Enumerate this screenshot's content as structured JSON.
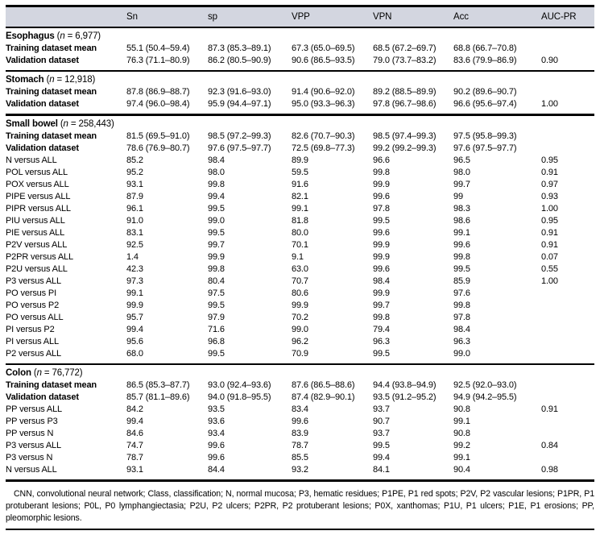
{
  "colors": {
    "header_band": "#d3d6e0",
    "rule": "#000000"
  },
  "table": {
    "n_symbol": "n",
    "columns": [
      "Sn",
      "sp",
      "VPP",
      "VPN",
      "Acc",
      "AUC-PR"
    ],
    "sections": [
      {
        "name": "Esophagus",
        "n": "6,977",
        "rule_above": "none",
        "rows": [
          {
            "label": "Training dataset mean",
            "bold": true,
            "values": [
              "55.1 (50.4–59.4)",
              "87.3 (85.3–89.1)",
              "67.3 (65.0–69.5)",
              "68.5 (67.2–69.7)",
              "68.8 (66.7–70.8)",
              ""
            ]
          },
          {
            "label": "Validation dataset",
            "bold": true,
            "values": [
              "76.3 (71.1–80.9)",
              "86.2 (80.5–90.9)",
              "90.6 (86.5–93.5)",
              "79.0 (73.7–83.2)",
              "83.6 (79.9–86.9)",
              "0.90"
            ]
          }
        ]
      },
      {
        "name": "Stomach",
        "n": "12,918",
        "rule_above": "thin",
        "rows": [
          {
            "label": "Training dataset mean",
            "bold": true,
            "values": [
              "87.8 (86.9–88.7)",
              "92.3 (91.6–93.0)",
              "91.4 (90.6–92.0)",
              "89.2 (88.5–89.9)",
              "90.2 (89.6–90.7)",
              ""
            ]
          },
          {
            "label": "Validation dataset",
            "bold": true,
            "values": [
              "97.4 (96.0–98.4)",
              "95.9 (94.4–97.1)",
              "95.0 (93.3–96.3)",
              "97.8 (96.7–98.6)",
              "96.6 (95.6–97.4)",
              "1.00"
            ]
          }
        ]
      },
      {
        "name": "Small bowel",
        "n": "258,443",
        "rule_above": "thick",
        "rows": [
          {
            "label": "Training dataset mean",
            "bold": true,
            "values": [
              "81.5 (69.5–91.0)",
              "98.5 (97.2–99.3)",
              "82.6 (70.7–90.3)",
              "98.5 (97.4–99.3)",
              "97.5 (95.8–99.3)",
              ""
            ]
          },
          {
            "label": "Validation dataset",
            "bold": true,
            "values": [
              "78.6 (76.9–80.7)",
              "97.6 (97.5–97.7)",
              "72.5 (69.8–77.3)",
              "99.2 (99.2–99.3)",
              "97.6 (97.5–97.7)",
              ""
            ]
          },
          {
            "label": "N versus ALL",
            "bold": false,
            "values": [
              "85.2",
              "98.4",
              "89.9",
              "96.6",
              "96.5",
              "0.95"
            ]
          },
          {
            "label": "POL versus ALL",
            "bold": false,
            "values": [
              "95.2",
              "98.0",
              "59.5",
              "99.8",
              "98.0",
              "0.91"
            ]
          },
          {
            "label": "POX versus ALL",
            "bold": false,
            "values": [
              "93.1",
              "99.8",
              "91.6",
              "99.9",
              "99.7",
              "0.97"
            ]
          },
          {
            "label": "PIPE versus ALL",
            "bold": false,
            "values": [
              "87.9",
              "99.4",
              "82.1",
              "99.6",
              "99",
              "0.93"
            ]
          },
          {
            "label": "PIPR versus ALL",
            "bold": false,
            "values": [
              "96.1",
              "99.5",
              "99.1",
              "97.8",
              "98.3",
              "1.00"
            ]
          },
          {
            "label": "PIU versus ALL",
            "bold": false,
            "values": [
              "91.0",
              "99.0",
              "81.8",
              "99.5",
              "98.6",
              "0.95"
            ]
          },
          {
            "label": "PIE versus ALL",
            "bold": false,
            "values": [
              "83.1",
              "99.5",
              "80.0",
              "99.6",
              "99.1",
              "0.91"
            ]
          },
          {
            "label": "P2V versus ALL",
            "bold": false,
            "values": [
              "92.5",
              "99.7",
              "70.1",
              "99.9",
              "99.6",
              "0.91"
            ]
          },
          {
            "label": "P2PR versus ALL",
            "bold": false,
            "values": [
              "1.4",
              "99.9",
              "9.1",
              "99.9",
              "99.8",
              "0.07"
            ]
          },
          {
            "label": "P2U versus ALL",
            "bold": false,
            "values": [
              "42.3",
              "99.8",
              "63.0",
              "99.6",
              "99.5",
              "0.55"
            ]
          },
          {
            "label": "P3 versus ALL",
            "bold": false,
            "values": [
              "97.3",
              "80.4",
              "70.7",
              "98.4",
              "85.9",
              "1.00"
            ]
          },
          {
            "label": "PO versus PI",
            "bold": false,
            "values": [
              "99.1",
              "97.5",
              "80.6",
              "99.9",
              "97.6",
              ""
            ]
          },
          {
            "label": "PO versus P2",
            "bold": false,
            "values": [
              "99.9",
              "99.5",
              "99.9",
              "99.7",
              "99.8",
              ""
            ]
          },
          {
            "label": "PO versus ALL",
            "bold": false,
            "values": [
              "95.7",
              "97.9",
              "70.2",
              "99.8",
              "97.8",
              ""
            ]
          },
          {
            "label": "PI versus P2",
            "bold": false,
            "values": [
              "99.4",
              "71.6",
              "99.0",
              "79.4",
              "98.4",
              ""
            ]
          },
          {
            "label": "PI versus ALL",
            "bold": false,
            "values": [
              "95.6",
              "96.8",
              "96.2",
              "96.3",
              "96.3",
              ""
            ]
          },
          {
            "label": "P2 versus ALL",
            "bold": false,
            "values": [
              "68.0",
              "99.5",
              "70.9",
              "99.5",
              "99.0",
              ""
            ]
          }
        ]
      },
      {
        "name": "Colon",
        "n": "76,772",
        "rule_above": "thin",
        "rows": [
          {
            "label": "Training dataset mean",
            "bold": true,
            "values": [
              "86.5 (85.3–87.7)",
              "93.0 (92.4–93.6)",
              "87.6 (86.5–88.6)",
              "94.4 (93.8–94.9)",
              "92.5 (92.0–93.0)",
              ""
            ]
          },
          {
            "label": "Validation dataset",
            "bold": true,
            "values": [
              "85.7 (81.1–89.6)",
              "94.0 (91.8–95.5)",
              "87.4 (82.9–90.1)",
              "93.5 (91.2–95.2)",
              "94.9 (94.2–95.5)",
              ""
            ]
          },
          {
            "label": "PP versus ALL",
            "bold": false,
            "values": [
              "84.2",
              "93.5",
              "83.4",
              "93.7",
              "90.8",
              "0.91"
            ]
          },
          {
            "label": "PP versus P3",
            "bold": false,
            "values": [
              "99.4",
              "93.6",
              "99.6",
              "90.7",
              "99.1",
              ""
            ]
          },
          {
            "label": "PP versus N",
            "bold": false,
            "values": [
              "84.6",
              "93.4",
              "83.9",
              "93.7",
              "90.8",
              ""
            ]
          },
          {
            "label": "P3 versus ALL",
            "bold": false,
            "values": [
              "74.7",
              "99.6",
              "78.7",
              "99.5",
              "99.2",
              "0.84"
            ]
          },
          {
            "label": "P3 versus N",
            "bold": false,
            "values": [
              "78.7",
              "99.6",
              "85.5",
              "99.4",
              "99.1",
              ""
            ]
          },
          {
            "label": "N versus ALL",
            "bold": false,
            "values": [
              "93.1",
              "84.4",
              "93.2",
              "84.1",
              "90.4",
              "0.98"
            ]
          }
        ]
      }
    ]
  },
  "footnote": "CNN, convolutional neural network; Class, classification; N, normal mucosa; P3, hematic residues; P1PE, P1 red spots; P2V, P2 vascular lesions; P1PR, P1 protuberant lesions; P0L, P0 lymphangiectasia; P2U, P2 ulcers; P2PR, P2 protuberant lesions; P0X, xanthomas; P1U, P1 ulcers; P1E, P1 erosions; PP, pleomorphic lesions."
}
